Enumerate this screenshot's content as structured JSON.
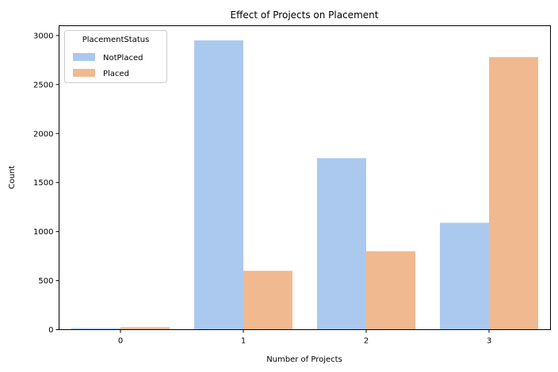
{
  "chart_data": {
    "type": "bar",
    "title": "Effect of Projects on Placement",
    "xlabel": "Number of Projects",
    "ylabel": "Count",
    "categories": [
      "0",
      "1",
      "2",
      "3"
    ],
    "ylim": [
      0,
      3100
    ],
    "yticks": [
      0,
      500,
      1000,
      1500,
      2000,
      2500,
      3000
    ],
    "grid": false,
    "legend": {
      "title": "PlacementStatus",
      "placement": "top-left"
    },
    "series": [
      {
        "name": "NotPlaced",
        "color": "#abc9ee",
        "values": [
          15,
          2950,
          1750,
          1090
        ]
      },
      {
        "name": "Placed",
        "color": "#f0b990",
        "values": [
          25,
          600,
          800,
          2780
        ]
      }
    ]
  }
}
